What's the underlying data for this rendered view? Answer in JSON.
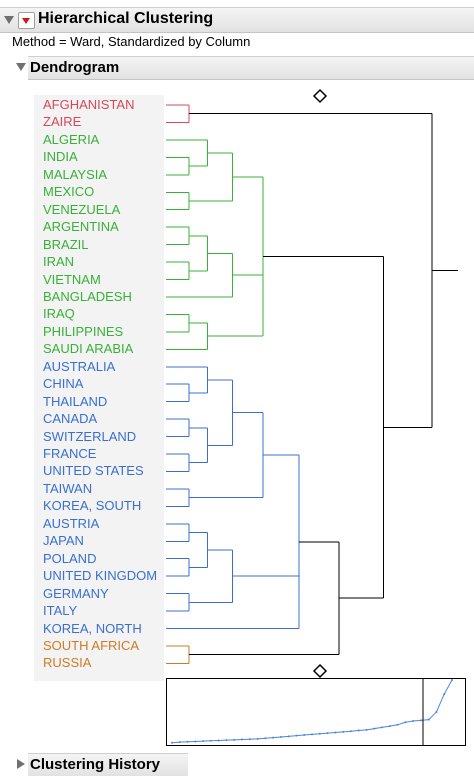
{
  "report": {
    "title": "Hierarchical Clustering",
    "method": "Method = Ward, Standardized by Column",
    "dendrogram_label": "Dendrogram",
    "history_label": "Clustering History"
  },
  "colors": {
    "red": "#d7485a",
    "green": "#39b03a",
    "blue": "#3a6fd0",
    "orange": "#cf7a24",
    "black": "#000000",
    "line_chart": "#4a86d8"
  },
  "countries": [
    {
      "name": "AFGHANISTAN",
      "cluster": "red"
    },
    {
      "name": "ZAIRE",
      "cluster": "red"
    },
    {
      "name": "ALGERIA",
      "cluster": "green"
    },
    {
      "name": "INDIA",
      "cluster": "green"
    },
    {
      "name": "MALAYSIA",
      "cluster": "green"
    },
    {
      "name": "MEXICO",
      "cluster": "green"
    },
    {
      "name": "VENEZUELA",
      "cluster": "green"
    },
    {
      "name": "ARGENTINA",
      "cluster": "green"
    },
    {
      "name": "BRAZIL",
      "cluster": "green"
    },
    {
      "name": "IRAN",
      "cluster": "green"
    },
    {
      "name": "VIETNAM",
      "cluster": "green"
    },
    {
      "name": "BANGLADESH",
      "cluster": "green"
    },
    {
      "name": "IRAQ",
      "cluster": "green"
    },
    {
      "name": "PHILIPPINES",
      "cluster": "green"
    },
    {
      "name": "SAUDI ARABIA",
      "cluster": "green"
    },
    {
      "name": "AUSTRALIA",
      "cluster": "blue"
    },
    {
      "name": "CHINA",
      "cluster": "blue"
    },
    {
      "name": "THAILAND",
      "cluster": "blue"
    },
    {
      "name": "CANADA",
      "cluster": "blue"
    },
    {
      "name": "SWITZERLAND",
      "cluster": "blue"
    },
    {
      "name": "FRANCE",
      "cluster": "blue"
    },
    {
      "name": "UNITED STATES",
      "cluster": "blue"
    },
    {
      "name": "TAIWAN",
      "cluster": "blue"
    },
    {
      "name": "KOREA, SOUTH",
      "cluster": "blue"
    },
    {
      "name": "AUSTRIA",
      "cluster": "blue"
    },
    {
      "name": "JAPAN",
      "cluster": "blue"
    },
    {
      "name": "POLAND",
      "cluster": "blue"
    },
    {
      "name": "UNITED KINGDOM",
      "cluster": "blue"
    },
    {
      "name": "GERMANY",
      "cluster": "blue"
    },
    {
      "name": "ITALY",
      "cluster": "blue"
    },
    {
      "name": "KOREA, NORTH",
      "cluster": "blue"
    },
    {
      "name": "SOUTH AFRICA",
      "cluster": "orange"
    },
    {
      "name": "RUSSIA",
      "cluster": "orange"
    }
  ],
  "tree": {
    "children": [
      {
        "children": [
          {
            "leaf": 0
          },
          {
            "leaf": 1
          }
        ]
      },
      {
        "children": [
          {
            "children": [
              {
                "children": [
                  {
                    "children": [
                      {
                        "leaf": 2
                      },
                      {
                        "children": [
                          {
                            "leaf": 3
                          },
                          {
                            "leaf": 4
                          }
                        ]
                      }
                    ]
                  },
                  {
                    "children": [
                      {
                        "leaf": 5
                      },
                      {
                        "leaf": 6
                      }
                    ]
                  }
                ]
              },
              {
                "children": [
                  {
                    "children": [
                      {
                        "children": [
                          {
                            "leaf": 7
                          },
                          {
                            "leaf": 8
                          }
                        ]
                      },
                      {
                        "children": [
                          {
                            "leaf": 9
                          },
                          {
                            "leaf": 10
                          }
                        ]
                      }
                    ]
                  },
                  {
                    "leaf": 11
                  }
                ]
              },
              {
                "children": [
                  {
                    "children": [
                      {
                        "leaf": 12
                      },
                      {
                        "leaf": 13
                      }
                    ]
                  },
                  {
                    "leaf": 14
                  }
                ]
              }
            ]
          },
          {
            "children": [
              {
                "children": [
                  {
                    "children": [
                      {
                        "children": [
                          {
                            "children": [
                              {
                                "leaf": 15
                              },
                              {
                                "children": [
                                  {
                                    "leaf": 16
                                  },
                                  {
                                    "leaf": 17
                                  }
                                ]
                              }
                            ]
                          },
                          {
                            "children": [
                              {
                                "children": [
                                  {
                                    "leaf": 18
                                  },
                                  {
                                    "leaf": 19
                                  }
                                ]
                              },
                              {
                                "children": [
                                  {
                                    "leaf": 20
                                  },
                                  {
                                    "leaf": 21
                                  }
                                ]
                              }
                            ]
                          }
                        ]
                      },
                      {
                        "children": [
                          {
                            "leaf": 22
                          },
                          {
                            "leaf": 23
                          }
                        ]
                      }
                    ]
                  },
                  {
                    "children": [
                      {
                        "children": [
                          {
                            "children": [
                              {
                                "leaf": 24
                              },
                              {
                                "leaf": 25
                              }
                            ]
                          },
                          {
                            "children": [
                              {
                                "leaf": 26
                              },
                              {
                                "leaf": 27
                              }
                            ]
                          }
                        ]
                      },
                      {
                        "children": [
                          {
                            "leaf": 28
                          },
                          {
                            "leaf": 29
                          }
                        ]
                      }
                    ]
                  },
                  {
                    "leaf": 30
                  }
                ]
              },
              {
                "children": [
                  {
                    "leaf": 31
                  },
                  {
                    "leaf": 32
                  }
                ]
              }
            ]
          }
        ]
      }
    ]
  },
  "distance_curve": [
    0.02,
    0.03,
    0.035,
    0.04,
    0.045,
    0.05,
    0.055,
    0.06,
    0.065,
    0.07,
    0.075,
    0.08,
    0.09,
    0.1,
    0.11,
    0.12,
    0.13,
    0.14,
    0.15,
    0.16,
    0.17,
    0.18,
    0.19,
    0.2,
    0.21,
    0.22,
    0.24,
    0.26,
    0.28,
    0.3,
    0.34,
    0.36,
    0.37,
    0.38,
    0.5,
    0.78,
    1.0
  ]
}
